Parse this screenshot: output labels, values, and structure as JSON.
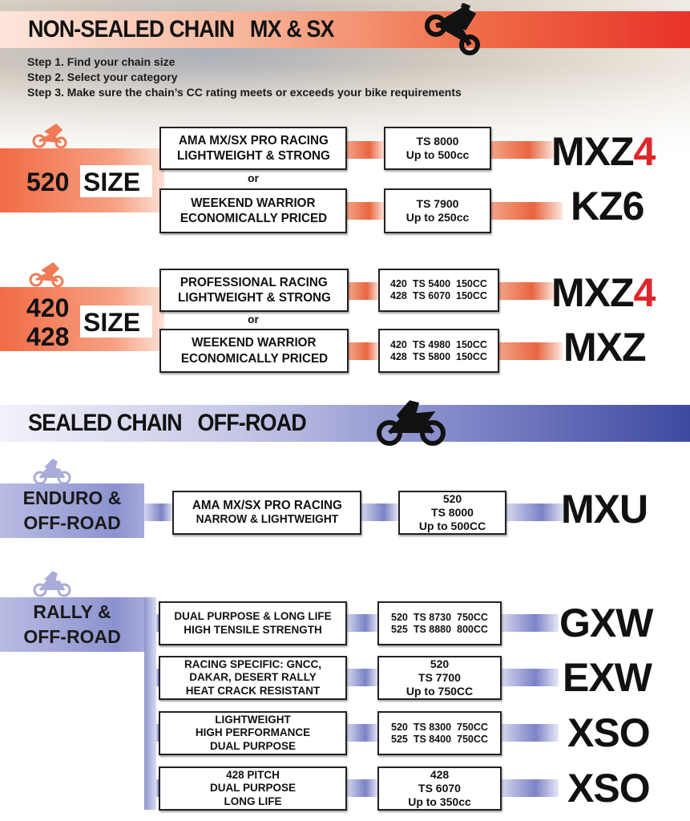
{
  "nonsealed": {
    "title": "NON-SEALED CHAIN   MX & SX",
    "accent": "#e8322a",
    "steps": [
      "Step 1. Find your chain size",
      "Step 2. Select your category",
      "Step 3. Make sure the chain’s CC rating meets or exceeds your bike requirements"
    ],
    "or": "or",
    "size520": {
      "num": "520",
      "label": "SIZE",
      "rows": [
        {
          "desc": [
            "AMA MX/SX PRO RACING",
            "LIGHTWEIGHT & STRONG"
          ],
          "spec": [
            "TS 8000",
            "Up to 500cc"
          ],
          "name": "MXZ",
          "suffix": "4"
        },
        {
          "desc": [
            "WEEKEND WARRIOR",
            "ECONOMICALLY PRICED"
          ],
          "spec": [
            "TS 7900",
            "Up to 250cc"
          ],
          "name": "KZ6",
          "suffix": ""
        }
      ]
    },
    "size420": {
      "num1": "420",
      "num2": "428",
      "label": "SIZE",
      "rows": [
        {
          "desc": [
            "PROFESSIONAL RACING",
            "LIGHTWEIGHT & STRONG"
          ],
          "spec": [
            "420  TS 5400  150CC",
            "428  TS 6070  150CC"
          ],
          "name": "MXZ",
          "suffix": "4"
        },
        {
          "desc": [
            "WEEKEND WARRIOR",
            "ECONOMICALLY PRICED"
          ],
          "spec": [
            "420  TS 4980  150CC",
            "428  TS 5800  150CC"
          ],
          "name": "MXZ",
          "suffix": ""
        }
      ]
    }
  },
  "sealed": {
    "title": "SEALED CHAIN   OFF-ROAD",
    "accent": "#3d4aa0",
    "enduro": {
      "label": [
        "ENDURO &",
        "OFF-ROAD"
      ],
      "desc": [
        "AMA MX/SX PRO RACING",
        "NARROW & LIGHTWEIGHT"
      ],
      "spec": [
        "520",
        "TS 8000",
        "Up to 500CC"
      ],
      "name": "MXU"
    },
    "rally": {
      "label": [
        "RALLY &",
        "OFF-ROAD"
      ],
      "rows": [
        {
          "desc": [
            "DUAL PURPOSE & LONG LIFE",
            "HIGH TENSILE STRENGTH"
          ],
          "spec": [
            "520  TS 8730  750CC",
            "525  TS 8880  800CC"
          ],
          "name": "GXW"
        },
        {
          "desc": [
            "RACING SPECIFIC: GNCC,",
            "DAKAR, DESERT RALLY",
            "HEAT CRACK RESISTANT"
          ],
          "spec": [
            "520",
            "TS 7700",
            "Up to 750CC"
          ],
          "name": "EXW"
        },
        {
          "desc": [
            "LIGHTWEIGHT",
            "HIGH PERFORMANCE",
            "DUAL PURPOSE"
          ],
          "spec": [
            "520  TS 8300  750CC",
            "525  TS 8400  750CC"
          ],
          "name": "XSO"
        },
        {
          "desc": [
            "428 PITCH",
            "DUAL PURPOSE",
            "LONG LIFE"
          ],
          "spec": [
            "428",
            "TS 6070",
            "Up to 350cc"
          ],
          "name": "XSO"
        }
      ]
    }
  }
}
